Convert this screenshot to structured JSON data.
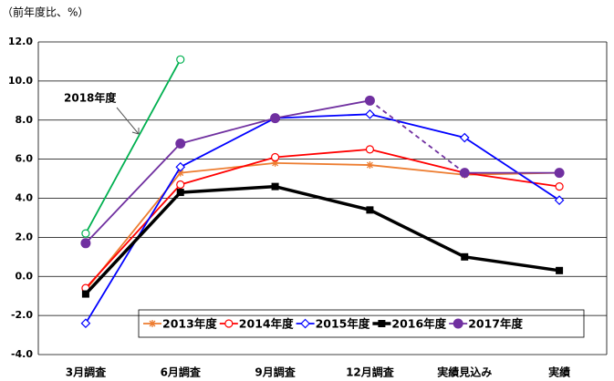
{
  "chart_data": {
    "type": "line",
    "y_label": "（前年度比、%）",
    "categories": [
      "3月調査",
      "6月調査",
      "9月調査",
      "12月調査",
      "実績見込み",
      "実績"
    ],
    "ylim": [
      -4,
      12
    ],
    "yticks": [
      {
        "value": -4,
        "label": "-4.0"
      },
      {
        "value": -2,
        "label": "-2.0"
      },
      {
        "value": 0,
        "label": "0.0"
      },
      {
        "value": 2,
        "label": "2.0"
      },
      {
        "value": 4,
        "label": "4.0"
      },
      {
        "value": 6,
        "label": "6.0"
      },
      {
        "value": 8,
        "label": "8.0"
      },
      {
        "value": 10,
        "label": "10.0"
      },
      {
        "value": 12,
        "label": "12.0"
      }
    ],
    "grid": true,
    "series": [
      {
        "name": "2013年度",
        "color": "#ed7d31",
        "marker": "asterisk",
        "values": [
          -0.7,
          5.3,
          5.8,
          5.7,
          5.2,
          5.3
        ]
      },
      {
        "name": "2014年度",
        "color": "#ff0000",
        "marker": "open-circle",
        "values": [
          -0.6,
          4.7,
          6.1,
          6.5,
          5.3,
          4.6
        ]
      },
      {
        "name": "2015年度",
        "color": "#0000ff",
        "marker": "open-diamond",
        "values": [
          -2.4,
          5.6,
          8.1,
          8.3,
          7.1,
          3.9
        ]
      },
      {
        "name": "2016年度",
        "color": "#000000",
        "marker": "square",
        "values": [
          -0.9,
          4.3,
          4.6,
          3.4,
          1.0,
          0.3
        ]
      },
      {
        "name": "2017年度",
        "color": "#7030a0",
        "marker": "circle",
        "dashed_segment": [
          3,
          4
        ],
        "values": [
          1.7,
          6.8,
          8.1,
          9.0,
          5.3,
          5.3
        ]
      },
      {
        "name": "2018年度",
        "color": "#00b050",
        "marker": "open-circle",
        "in_legend": false,
        "values": [
          2.2,
          11.1,
          null,
          null,
          null,
          null
        ]
      }
    ]
  }
}
